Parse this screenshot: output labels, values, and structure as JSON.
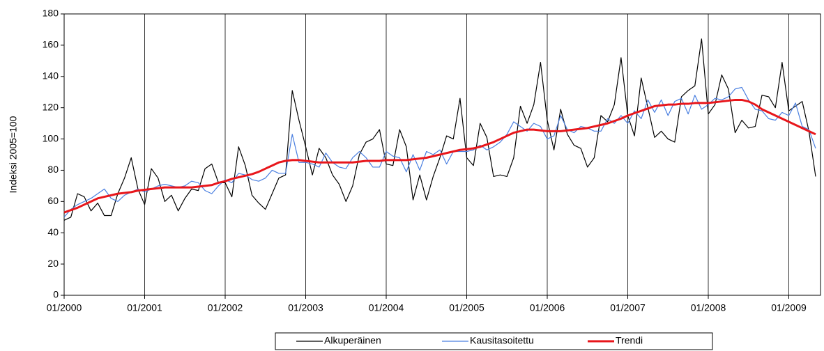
{
  "chart_data": {
    "type": "line",
    "y_label": "Indeksi 2005=100",
    "categories": [
      "01/2000",
      null,
      null,
      null,
      null,
      null,
      null,
      null,
      null,
      null,
      null,
      null,
      "01/2001",
      null,
      null,
      null,
      null,
      null,
      null,
      null,
      null,
      null,
      null,
      null,
      "01/2002",
      null,
      null,
      null,
      null,
      null,
      null,
      null,
      null,
      null,
      null,
      null,
      "01/2003",
      null,
      null,
      null,
      null,
      null,
      null,
      null,
      null,
      null,
      null,
      null,
      "01/2004",
      null,
      null,
      null,
      null,
      null,
      null,
      null,
      null,
      null,
      null,
      null,
      "01/2005",
      null,
      null,
      null,
      null,
      null,
      null,
      null,
      null,
      null,
      null,
      null,
      "01/2006",
      null,
      null,
      null,
      null,
      null,
      null,
      null,
      null,
      null,
      null,
      null,
      "01/2007",
      null,
      null,
      null,
      null,
      null,
      null,
      null,
      null,
      null,
      null,
      null,
      "01/2008",
      null,
      null,
      null,
      null,
      null,
      null,
      null,
      null,
      null,
      null,
      null,
      "01/2009",
      null,
      null,
      null,
      null
    ],
    "series": [
      {
        "name": "Alkuperäinen",
        "color": "#000000",
        "width": 1.2,
        "values": [
          48,
          50,
          65,
          63,
          54,
          59,
          51,
          51,
          65,
          75,
          88,
          68,
          58,
          81,
          75,
          60,
          64,
          54,
          62,
          68,
          67,
          81,
          84,
          72,
          72,
          63,
          95,
          83,
          64,
          59,
          55,
          65,
          75,
          77,
          131,
          112,
          95,
          77,
          94,
          88,
          77,
          71,
          60,
          70,
          90,
          98,
          100,
          106,
          84,
          83,
          106,
          95,
          61,
          77,
          61,
          76,
          88,
          102,
          100,
          126,
          88,
          83,
          110,
          101,
          76,
          77,
          76,
          88,
          121,
          110,
          122,
          149,
          112,
          93,
          119,
          103,
          96,
          94,
          82,
          88,
          115,
          111,
          122,
          152,
          115,
          102,
          139,
          120,
          101,
          105,
          100,
          98,
          127,
          131,
          134,
          164,
          116,
          122,
          141,
          132,
          104,
          112,
          107,
          108,
          128,
          127,
          120,
          149,
          118,
          121,
          124,
          105,
          76
        ]
      },
      {
        "name": "Kausitasoitettu",
        "color": "#4a7fe0",
        "width": 1.2,
        "values": [
          50,
          55,
          58,
          60,
          62,
          65,
          68,
          62,
          60,
          64,
          66,
          68,
          66,
          68,
          70,
          71,
          70,
          69,
          70,
          73,
          72,
          67,
          65,
          70,
          74,
          72,
          78,
          77,
          74,
          73,
          75,
          80,
          78,
          78,
          103,
          85,
          85,
          84,
          82,
          91,
          85,
          82,
          81,
          88,
          92,
          88,
          82,
          82,
          92,
          89,
          88,
          79,
          90,
          80,
          92,
          90,
          93,
          84,
          92,
          92,
          92,
          93,
          96,
          93,
          95,
          98,
          103,
          111,
          108,
          105,
          110,
          108,
          100,
          102,
          115,
          106,
          104,
          108,
          107,
          105,
          105,
          113,
          110,
          115,
          110,
          118,
          113,
          125,
          117,
          125,
          115,
          124,
          126,
          116,
          128,
          119,
          122,
          126,
          125,
          127,
          132,
          133,
          125,
          119,
          118,
          113,
          112,
          117,
          115,
          123,
          108,
          106,
          94
        ]
      },
      {
        "name": "Trendi",
        "color": "#e8161b",
        "width": 3,
        "values": [
          53,
          54.5,
          56,
          58,
          60,
          62,
          63,
          64,
          65,
          65.5,
          66,
          67,
          67.5,
          68,
          68.5,
          69,
          69,
          69,
          69,
          69,
          69.5,
          70,
          70.5,
          72,
          73,
          74.5,
          75.5,
          76.5,
          77.5,
          79,
          81,
          83,
          85,
          86,
          86.5,
          86.5,
          86,
          85.5,
          85,
          85,
          85,
          85,
          85,
          85,
          85.5,
          86,
          86,
          86,
          86.5,
          86.5,
          86.5,
          86.5,
          87,
          87.5,
          88,
          89,
          90,
          91,
          92,
          93,
          93.5,
          94,
          95,
          96.5,
          98,
          100,
          102,
          104,
          105,
          106,
          106,
          105.5,
          105,
          105,
          105,
          105.5,
          106,
          106.5,
          107,
          108,
          109,
          110,
          111.5,
          113,
          115,
          116.5,
          118,
          119.5,
          121,
          121.5,
          122,
          122,
          122.5,
          122.5,
          123,
          123,
          123,
          123.5,
          124,
          124.5,
          125,
          125,
          124,
          122,
          119,
          117,
          115,
          113,
          111,
          109,
          107,
          105,
          103
        ]
      }
    ],
    "ylim": [
      0,
      180
    ],
    "yticks": [
      0,
      20,
      40,
      60,
      80,
      100,
      120,
      140,
      160,
      180
    ],
    "grid": true,
    "legend": "bottom"
  }
}
